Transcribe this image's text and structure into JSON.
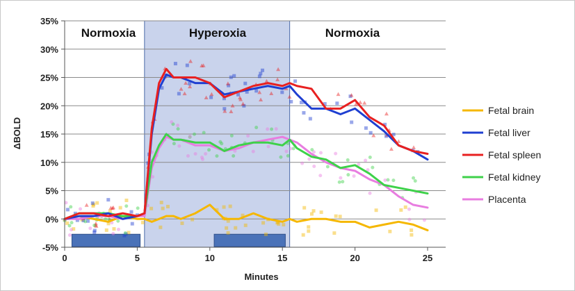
{
  "chart_data": {
    "type": "line",
    "xlabel": "Minutes",
    "ylabel": "ΔBOLD",
    "xlim": [
      0,
      26
    ],
    "ylim": [
      -5,
      35
    ],
    "x_ticks": [
      0,
      5,
      10,
      15,
      20,
      25
    ],
    "y_ticks": [
      -5,
      0,
      5,
      10,
      15,
      20,
      25,
      30,
      35
    ],
    "y_tick_labels": [
      "-5%",
      "0%",
      "5%",
      "10%",
      "15%",
      "20%",
      "25%",
      "30%",
      "35%"
    ],
    "grid": "horizontal",
    "legend_position": "right",
    "phases": [
      {
        "label": "Normoxia",
        "x_start": 0,
        "x_end": 5.5
      },
      {
        "label": "Hyperoxia",
        "x_start": 5.5,
        "x_end": 15.5,
        "shaded": true,
        "color": "#c9d3ec"
      },
      {
        "label": "Normoxia",
        "x_start": 15.5,
        "x_end": 26
      }
    ],
    "markers": [
      {
        "x_start": 0.5,
        "x_end": 5.2,
        "y_start": -4.9,
        "y_end": -2.7,
        "color": "#4a72b8"
      },
      {
        "x_start": 10.3,
        "x_end": 15.2,
        "y_start": -4.9,
        "y_end": -2.7,
        "color": "#4a72b8"
      }
    ],
    "x": [
      0,
      1,
      2,
      3,
      4,
      5,
      5.5,
      6,
      6.5,
      7,
      7.5,
      8,
      9,
      10,
      11,
      12,
      13,
      14,
      15,
      15.5,
      16,
      17,
      18,
      19,
      20,
      21,
      22,
      23,
      24,
      25
    ],
    "series": [
      {
        "name": "Fetal brain",
        "color": "#f5b700",
        "values": [
          0,
          0.5,
          0,
          -0.5,
          0.5,
          0,
          0,
          -0.5,
          0,
          0.5,
          0.5,
          0,
          1,
          2.5,
          0,
          0,
          1,
          0,
          -0.5,
          0,
          -0.5,
          0,
          0,
          -0.5,
          -0.5,
          -1.5,
          -1,
          -0.5,
          -1,
          -2
        ]
      },
      {
        "name": "Fetal liver",
        "color": "#1f3fd1",
        "values": [
          0,
          0.5,
          0.5,
          1,
          0,
          0.5,
          1,
          15,
          23,
          25.5,
          25,
          25,
          24,
          24,
          22,
          22.5,
          23,
          23.5,
          23,
          23.5,
          22,
          19.5,
          19.5,
          18.5,
          19.5,
          17.5,
          15.5,
          13,
          12,
          10.5
        ]
      },
      {
        "name": "Fetal spleen",
        "color": "#e82020",
        "values": [
          0,
          1,
          1,
          0.5,
          1,
          0.5,
          1,
          16,
          24,
          26.5,
          25,
          25,
          25,
          24,
          21.5,
          22.5,
          23.5,
          24,
          23.5,
          24,
          23.5,
          23,
          19.5,
          19.5,
          21,
          18,
          16.5,
          13,
          12,
          11.5
        ]
      },
      {
        "name": "Fetal kidney",
        "color": "#3ed14a",
        "values": [
          0,
          1,
          1,
          1,
          0.5,
          0.5,
          1,
          10,
          13,
          15,
          14,
          14,
          13.5,
          13.5,
          12,
          13,
          13.5,
          13.5,
          13,
          14,
          12.5,
          11,
          10.5,
          9,
          9.5,
          8,
          6,
          5.5,
          5,
          4.5
        ]
      },
      {
        "name": "Placenta",
        "color": "#e87de0",
        "values": [
          0,
          0,
          0.5,
          0.5,
          0,
          0.5,
          0.5,
          9,
          12.5,
          14.5,
          14,
          14,
          13,
          13,
          12,
          12.5,
          13.5,
          14,
          14.5,
          14,
          13.5,
          11.5,
          10,
          9,
          8.5,
          7,
          6,
          4,
          2.5,
          2
        ]
      }
    ]
  }
}
